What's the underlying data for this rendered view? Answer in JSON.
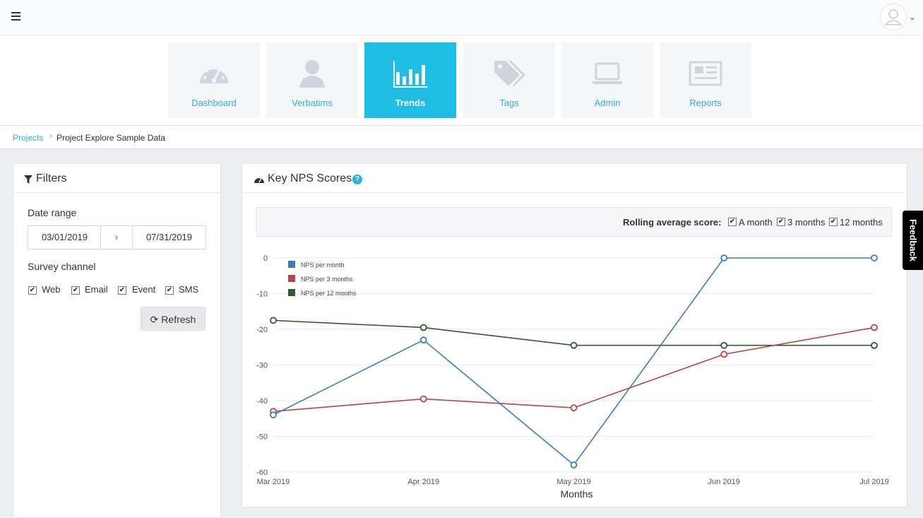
{
  "nav": {
    "tiles": [
      {
        "label": "Dashboard",
        "icon": "gauge-icon"
      },
      {
        "label": "Verbatims",
        "icon": "user-icon"
      },
      {
        "label": "Trends",
        "icon": "bar-chart-icon"
      },
      {
        "label": "Tags",
        "icon": "tags-icon"
      },
      {
        "label": "Admin",
        "icon": "laptop-icon"
      },
      {
        "label": "Reports",
        "icon": "newspaper-icon"
      }
    ],
    "active": "Trends"
  },
  "breadcrumb": {
    "root": "Projects",
    "current": "Project Explore Sample Data"
  },
  "filters": {
    "title": "Filters",
    "date_range_label": "Date range",
    "start_date": "03/01/2019",
    "separator": "›",
    "end_date": "07/31/2019",
    "survey_channel_label": "Survey channel",
    "channels": [
      {
        "label": "Web",
        "checked": true
      },
      {
        "label": "Email",
        "checked": true
      },
      {
        "label": "Event",
        "checked": true
      },
      {
        "label": "SMS",
        "checked": true
      }
    ],
    "refresh_label": "Refresh"
  },
  "panel": {
    "title": "Key NPS Scores",
    "help": "?",
    "rolling_label": "Rolling average score:",
    "rolling_options": [
      {
        "label": "A month",
        "checked": true
      },
      {
        "label": "3 months",
        "checked": true
      },
      {
        "label": "12 months",
        "checked": true
      }
    ]
  },
  "feedback_label": "Feedback",
  "colors": {
    "accent": "#1ebde3",
    "link": "#2cb3d9",
    "series_month": "#3a7dbf",
    "series_3m": "#b84444",
    "series_12m": "#2f5a2f"
  },
  "chart_data": {
    "type": "line",
    "categories": [
      "Mar 2019",
      "Apr 2019",
      "May 2019",
      "Jun 2019",
      "Jul 2019"
    ],
    "xlabel": "Months",
    "ylabel": "",
    "ylim": [
      -60,
      0
    ],
    "yticks": [
      0,
      -10,
      -20,
      -30,
      -40,
      -50,
      -60
    ],
    "grid": true,
    "legend": "top-left",
    "series": [
      {
        "name": "NPS per month",
        "values": [
          -44,
          -23,
          -58,
          0,
          0
        ]
      },
      {
        "name": "NPS per 3 months",
        "values": [
          -43,
          -39.5,
          -42,
          -27,
          -19.5
        ]
      },
      {
        "name": "NPS per 12 months",
        "values": [
          -17.5,
          -19.5,
          -24.5,
          -24.5,
          -24.5
        ]
      }
    ]
  }
}
